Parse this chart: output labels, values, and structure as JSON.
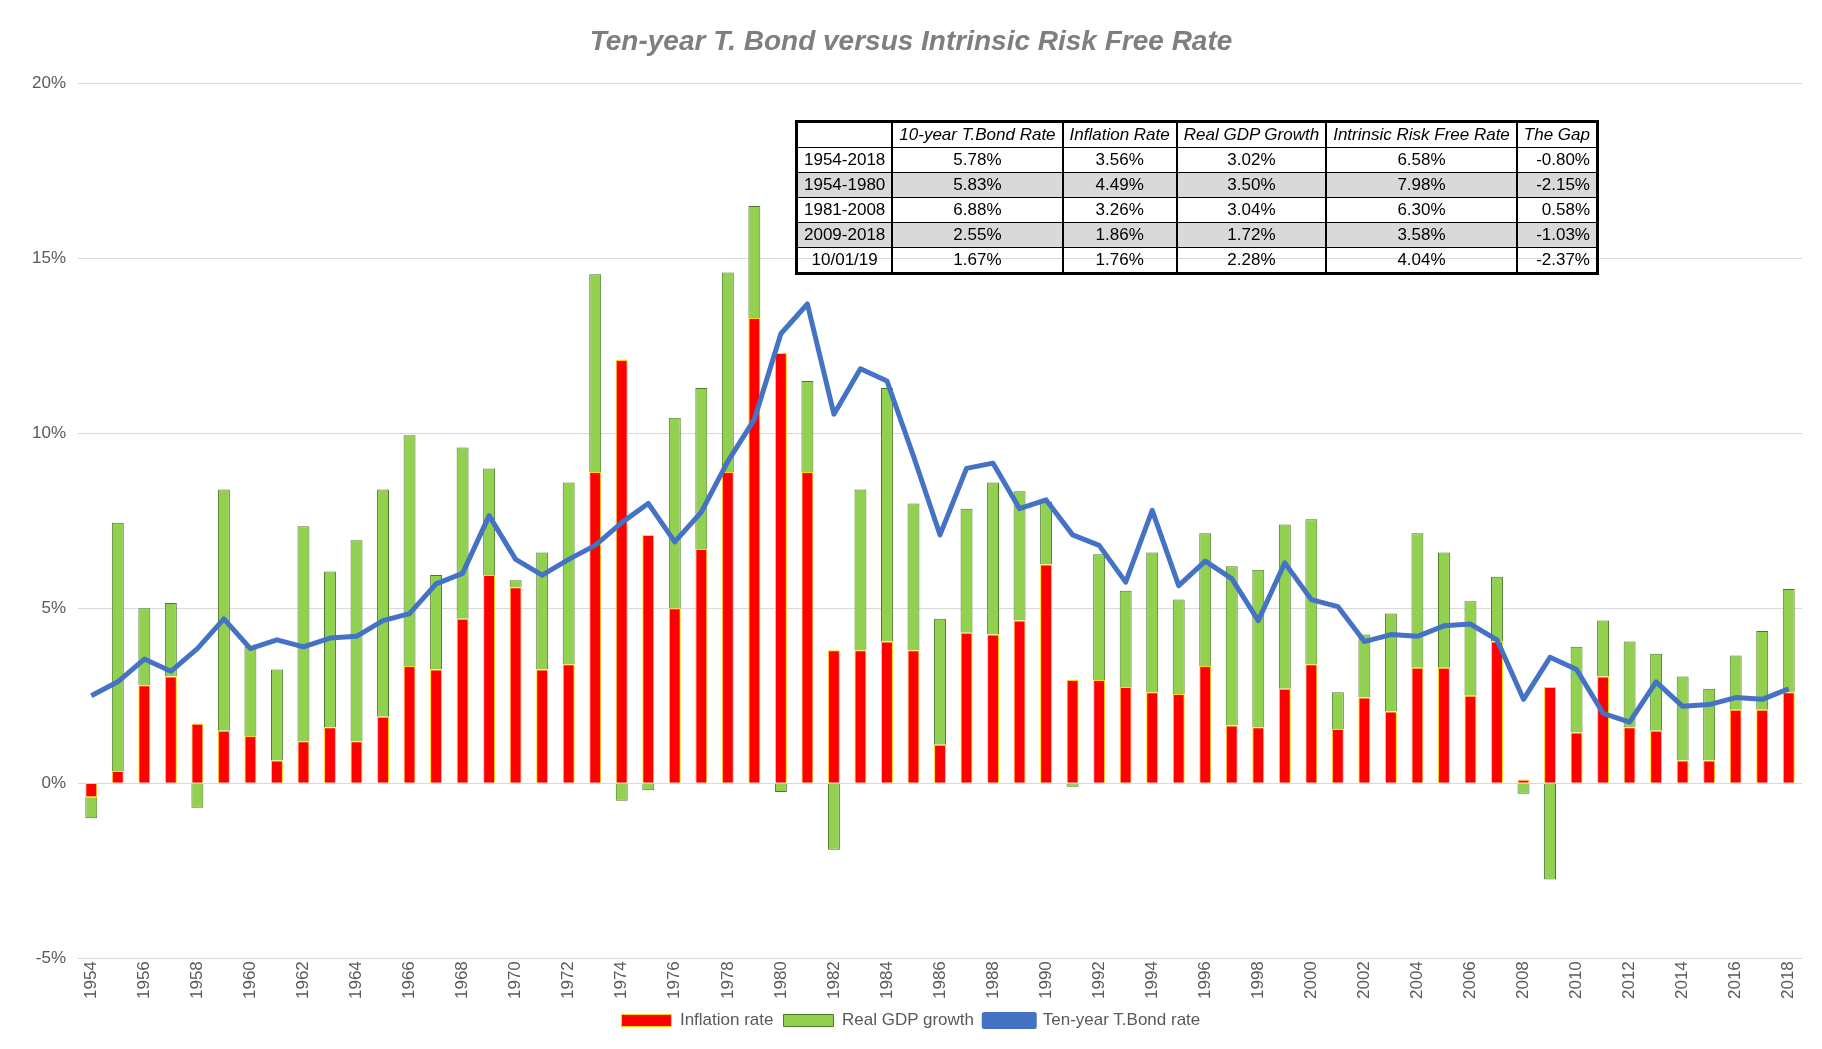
{
  "chart_data": {
    "type": "bar",
    "title": "Ten-year T. Bond versus Intrinsic Risk Free Rate",
    "categories": [
      "1954",
      null,
      "1956",
      null,
      "1958",
      null,
      "1960",
      null,
      "1962",
      null,
      "1964",
      null,
      "1966",
      null,
      "1968",
      null,
      "1970",
      null,
      "1972",
      null,
      "1974",
      null,
      "1976",
      null,
      "1978",
      null,
      "1980",
      null,
      "1982",
      null,
      "1984",
      null,
      "1986",
      null,
      "1988",
      null,
      "1990",
      null,
      "1992",
      null,
      "1994",
      null,
      "1996",
      null,
      "1998",
      null,
      "2000",
      null,
      "2002",
      null,
      "2004",
      null,
      "2006",
      null,
      "2008",
      null,
      "2010",
      null,
      "2012",
      null,
      "2014",
      null,
      "2016",
      null,
      "2018"
    ],
    "series": [
      {
        "name": "Inflation rate",
        "color": "#ff0000",
        "values": [
          -0.4,
          0.35,
          2.8,
          3.05,
          1.7,
          1.5,
          1.35,
          0.65,
          1.2,
          1.6,
          1.2,
          1.9,
          3.35,
          3.25,
          4.7,
          5.95,
          5.6,
          3.25,
          3.4,
          8.9,
          12.1,
          7.1,
          5.0,
          6.7,
          8.9,
          13.3,
          12.3,
          8.9,
          3.8,
          3.8,
          4.05,
          3.8,
          1.1,
          4.3,
          4.25,
          4.65,
          6.25,
          2.95,
          2.95,
          2.75,
          2.6,
          2.55,
          3.35,
          1.65,
          1.6,
          2.7,
          3.4,
          1.55,
          2.45,
          2.05,
          3.3,
          3.3,
          2.5,
          4.05,
          0.1,
          2.75,
          1.45,
          3.05,
          1.6,
          1.5,
          0.65,
          0.65,
          2.1,
          2.1,
          2.6
        ]
      },
      {
        "name": "Real GDP growth",
        "color": "#92d050",
        "values": [
          -0.6,
          7.1,
          2.2,
          2.1,
          -0.7,
          6.9,
          2.55,
          2.6,
          6.15,
          4.45,
          5.75,
          6.5,
          6.6,
          2.7,
          4.9,
          3.05,
          0.2,
          3.35,
          5.2,
          5.65,
          -0.5,
          -0.2,
          5.45,
          4.6,
          5.7,
          3.2,
          -0.25,
          2.6,
          -1.9,
          4.6,
          7.25,
          4.2,
          3.6,
          3.55,
          4.35,
          3.7,
          1.8,
          -0.1,
          3.6,
          2.75,
          4.0,
          2.7,
          3.8,
          4.55,
          4.5,
          4.7,
          4.15,
          1.05,
          1.8,
          2.8,
          3.85,
          3.3,
          2.7,
          1.85,
          -0.3,
          -2.75,
          2.45,
          1.6,
          2.45,
          2.2,
          2.4,
          2.05,
          1.55,
          2.25,
          2.95
        ]
      },
      {
        "name": "Ten-year T.Bond rate",
        "type": "line",
        "color": "#4472c4",
        "values": [
          2.5,
          2.9,
          3.55,
          3.2,
          3.85,
          4.7,
          3.85,
          4.1,
          3.9,
          4.15,
          4.2,
          4.65,
          4.85,
          5.7,
          6.0,
          7.65,
          6.4,
          5.95,
          6.4,
          6.8,
          7.45,
          8.0,
          6.9,
          7.75,
          9.2,
          10.4,
          12.85,
          13.7,
          10.55,
          11.85,
          11.5,
          9.35,
          7.1,
          9.0,
          9.15,
          7.85,
          8.1,
          7.1,
          6.8,
          5.75,
          7.8,
          5.65,
          6.35,
          5.85,
          4.65,
          6.3,
          5.25,
          5.05,
          4.05,
          4.25,
          4.2,
          4.5,
          4.55,
          4.1,
          2.4,
          3.6,
          3.25,
          2.0,
          1.75,
          2.9,
          2.2,
          2.25,
          2.45,
          2.4,
          2.7
        ]
      }
    ],
    "stacked": true,
    "ylim": [
      -5,
      20
    ],
    "yticks": [
      {
        "value": -5,
        "label": "-5%"
      },
      {
        "value": 0,
        "label": "0%"
      },
      {
        "value": 5,
        "label": "5%"
      },
      {
        "value": 10,
        "label": "10%"
      },
      {
        "value": 15,
        "label": "15%"
      },
      {
        "value": 20,
        "label": "20%"
      }
    ],
    "grid": "y",
    "legend": "bottom",
    "marker": "none",
    "line_style": "solid",
    "annotations": [
      "10-year T.Bond Rate",
      "Inflation Rate",
      "Real GDP Growth",
      "Intrinsic Risk Free Rate",
      "The Gap",
      "1954-2018",
      "5.78%",
      "3.56%",
      "3.02%",
      "6.58%",
      "-0.80%",
      "1954-1980",
      "5.83%",
      "4.49%",
      "3.50%",
      "7.98%",
      "-2.15%",
      "1981-2008",
      "6.88%",
      "3.26%",
      "3.04%",
      "6.30%",
      "0.58%",
      "2009-2018",
      "2.55%",
      "1.86%",
      "1.72%",
      "3.58%",
      "-1.03%",
      "10/01/19",
      "1.67%",
      "1.76%",
      "2.28%",
      "4.04%",
      "-2.37%"
    ]
  }
}
